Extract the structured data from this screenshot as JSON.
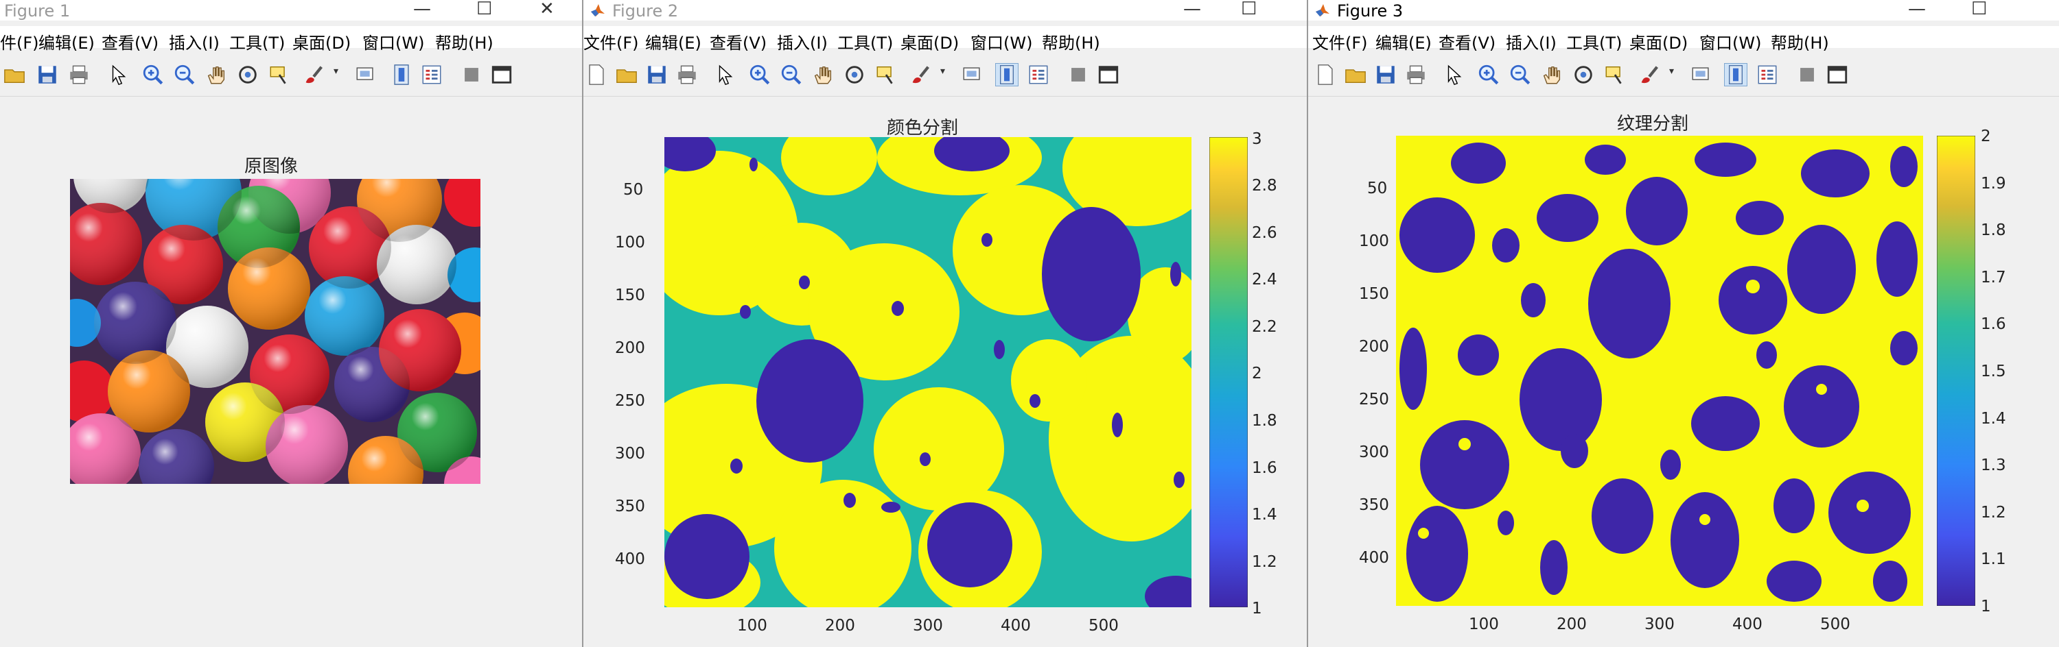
{
  "windows": [
    {
      "title": "Figure 1",
      "menu": [
        "件(F)",
        "编辑(E)",
        "查看(V)",
        "插入(I)",
        "工具(T)",
        "桌面(D)",
        "窗口(W)",
        "帮助(H)"
      ],
      "axes_title": "原图像"
    },
    {
      "title": "Figure 2",
      "menu": [
        "文件(F)",
        "编辑(E)",
        "查看(V)",
        "插入(I)",
        "工具(T)",
        "桌面(D)",
        "窗口(W)",
        "帮助(H)"
      ],
      "axes_title": "颜色分割",
      "y_ticks": [
        "50",
        "100",
        "150",
        "200",
        "250",
        "300",
        "350",
        "400"
      ],
      "x_ticks": [
        "100",
        "200",
        "300",
        "400",
        "500"
      ],
      "colorbar_ticks": [
        "3",
        "2.8",
        "2.6",
        "2.4",
        "2.2",
        "2",
        "1.8",
        "1.6",
        "1.4",
        "1.2",
        "1"
      ]
    },
    {
      "title": "Figure 3",
      "menu": [
        "文件(F)",
        "编辑(E)",
        "查看(V)",
        "插入(I)",
        "工具(T)",
        "桌面(D)",
        "窗口(W)",
        "帮助(H)"
      ],
      "axes_title": "纹理分割",
      "y_ticks": [
        "50",
        "100",
        "150",
        "200",
        "250",
        "300",
        "350",
        "400"
      ],
      "x_ticks": [
        "100",
        "200",
        "300",
        "400",
        "500"
      ],
      "colorbar_ticks": [
        "2",
        "1.9",
        "1.8",
        "1.7",
        "1.6",
        "1.5",
        "1.4",
        "1.3",
        "1.2",
        "1.1",
        "1"
      ]
    }
  ],
  "colors": {
    "parula_yellow": "#f9f90f",
    "parula_teal": "#20b8a8",
    "parula_blue": "#3e26a8",
    "window_bg": "#f0f0f0"
  },
  "icons": [
    "new-icon",
    "open-folder-icon",
    "save-icon",
    "print-icon",
    "pointer-icon",
    "zoom-in-icon",
    "zoom-out-icon",
    "pan-hand-icon",
    "rotate-icon",
    "data-cursor-icon",
    "brush-icon",
    "link-icon",
    "colorbar-icon",
    "legend-icon",
    "hide-tools-icon",
    "dock-icon"
  ]
}
